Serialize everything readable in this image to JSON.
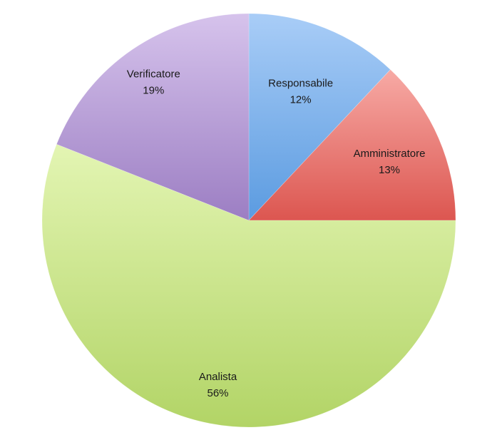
{
  "chart_data": {
    "type": "pie",
    "title": "",
    "slices": [
      {
        "label": "Responsabile",
        "value": 12,
        "value_label": "12%",
        "color_light": "#a9cdf7",
        "color_dark": "#5b9be0"
      },
      {
        "label": "Amministratore",
        "value": 13,
        "value_label": "13%",
        "color_light": "#f7aaa5",
        "color_dark": "#dc5650"
      },
      {
        "label": "Analista",
        "value": 56,
        "value_label": "56%",
        "color_light": "#e3f5b3",
        "color_dark": "#b2d466"
      },
      {
        "label": "Verificatore",
        "value": 19,
        "value_label": "19%",
        "color_light": "#d6c3ec",
        "color_dark": "#9c7ec3"
      }
    ],
    "start_angle_deg": 0,
    "direction": "clockwise",
    "legend": "none",
    "data_labels": "inside"
  }
}
